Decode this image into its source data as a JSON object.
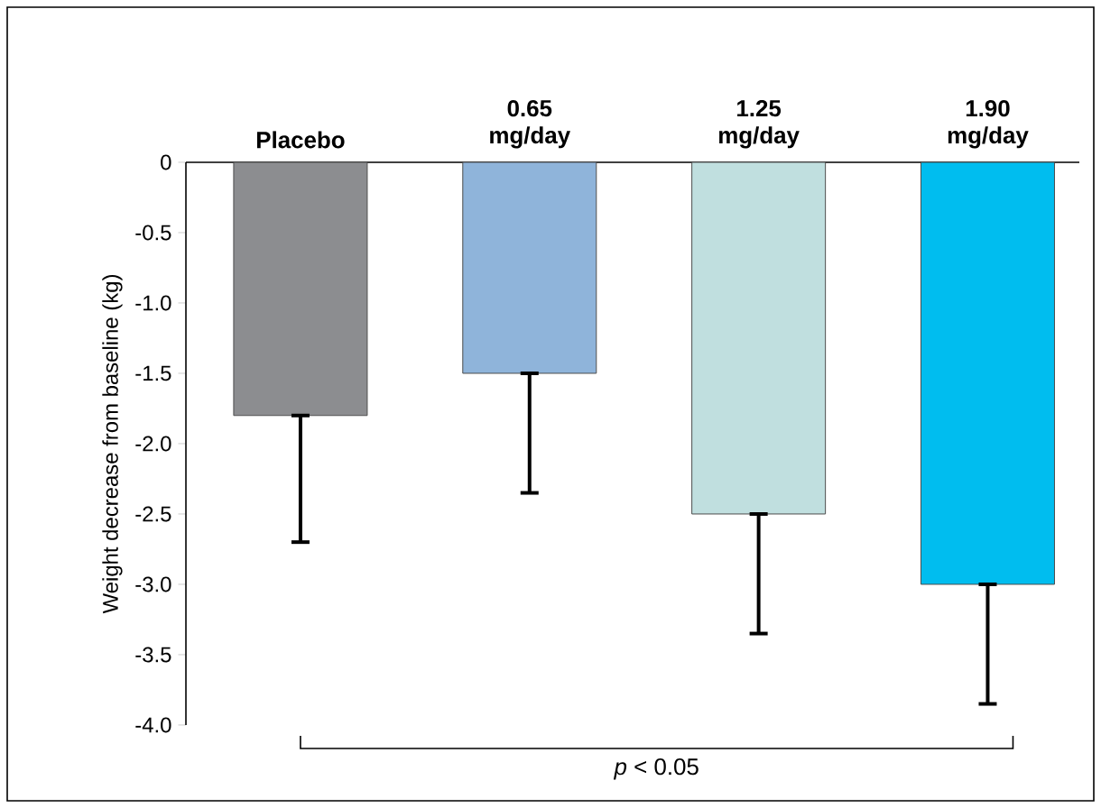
{
  "chart_data": {
    "type": "bar",
    "ylabel": "Weight decrease from baseline (kg)",
    "categories": [
      "Placebo",
      "0.65 mg/day",
      "1.25 mg/day",
      "1.90 mg/day"
    ],
    "values": [
      -1.8,
      -1.5,
      -2.5,
      -3.0
    ],
    "errors": [
      [
        -2.7,
        -1.8
      ],
      [
        -2.35,
        -1.5
      ],
      [
        -3.35,
        -2.5
      ],
      [
        -3.85,
        -3.0
      ]
    ],
    "colors": [
      "#8c8d90",
      "#8fb4da",
      "#c0dfdf",
      "#00bdef"
    ],
    "ylim": [
      -4,
      0
    ],
    "yticks": [
      0,
      -0.5,
      {
        "value": -1,
        "label": "-1.0"
      },
      -1.5,
      {
        "value": -2,
        "label": "-2.0"
      },
      -2.5,
      {
        "value": -3,
        "label": "-3.0"
      },
      -3.5,
      {
        "value": -4,
        "label": "-4.0"
      }
    ],
    "annotations": [
      "*p* < 0.05"
    ]
  }
}
